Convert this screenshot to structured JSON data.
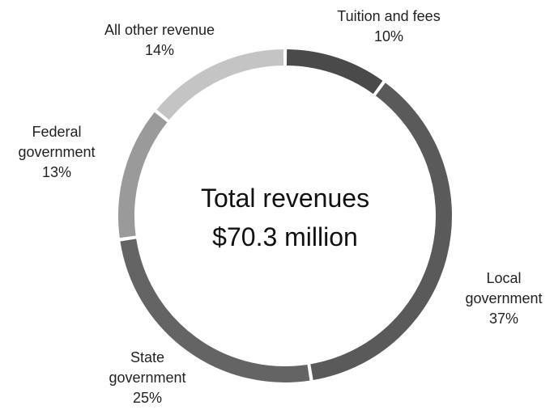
{
  "chart_data": {
    "type": "pie",
    "style": "donut",
    "center_text": [
      "Total revenues",
      "$70.3 million"
    ],
    "total": 70.3,
    "unit": "million",
    "slices": [
      {
        "label": [
          "Tuition and fees"
        ],
        "percent": "10%",
        "value": 10,
        "color": "#4a4a4a"
      },
      {
        "label": [
          "Local",
          "government"
        ],
        "percent": "37%",
        "value": 37,
        "color": "#5a5a5a"
      },
      {
        "label": [
          "State",
          "government"
        ],
        "percent": "25%",
        "value": 25,
        "color": "#646464"
      },
      {
        "label": [
          "Federal",
          "government"
        ],
        "percent": "13%",
        "value": 13,
        "color": "#9a9a9a"
      },
      {
        "label": [
          "All other revenue"
        ],
        "percent": "14%",
        "value": 14,
        "color": "#c4c4c4"
      }
    ]
  }
}
